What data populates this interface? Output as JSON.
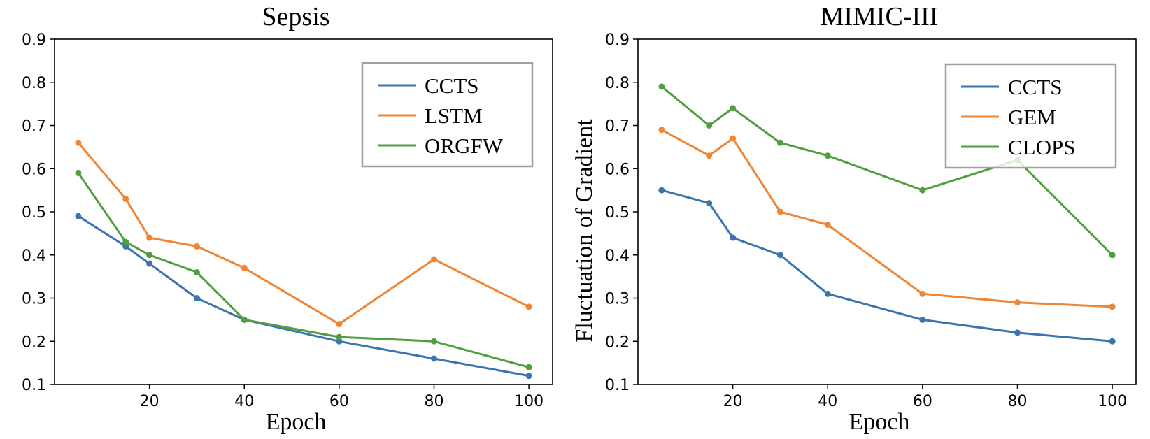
{
  "chart_data": [
    {
      "type": "line",
      "title": "Sepsis",
      "xlabel": "Epoch",
      "ylabel": "",
      "x": [
        5,
        15,
        20,
        30,
        40,
        60,
        80,
        100
      ],
      "xlim": [
        0,
        105
      ],
      "ylim": [
        0.1,
        0.9
      ],
      "xticks": [
        20,
        40,
        60,
        80,
        100
      ],
      "yticks": [
        0.1,
        0.2,
        0.3,
        0.4,
        0.5,
        0.6,
        0.7,
        0.8,
        0.9
      ],
      "grid": false,
      "legend_position": "top-right",
      "series": [
        {
          "name": "CCTS",
          "color": "#3a75ae",
          "values": [
            0.49,
            0.42,
            0.38,
            0.3,
            0.25,
            0.2,
            0.16,
            0.12
          ]
        },
        {
          "name": "LSTM",
          "color": "#ef8636",
          "values": [
            0.66,
            0.53,
            0.44,
            0.42,
            0.37,
            0.24,
            0.39,
            0.28
          ]
        },
        {
          "name": "ORGFW",
          "color": "#519e3e",
          "values": [
            0.59,
            0.43,
            0.4,
            0.36,
            0.25,
            0.21,
            0.2,
            0.14
          ]
        }
      ]
    },
    {
      "type": "line",
      "title": "MIMIC-III",
      "xlabel": "Epoch",
      "ylabel": "Fluctuation of Gradient",
      "x": [
        5,
        15,
        20,
        30,
        40,
        60,
        80,
        100
      ],
      "xlim": [
        0,
        105
      ],
      "ylim": [
        0.1,
        0.9
      ],
      "xticks": [
        20,
        40,
        60,
        80,
        100
      ],
      "yticks": [
        0.1,
        0.2,
        0.3,
        0.4,
        0.5,
        0.6,
        0.7,
        0.8,
        0.9
      ],
      "grid": false,
      "legend_position": "top-right",
      "series": [
        {
          "name": "CCTS",
          "color": "#3a75ae",
          "values": [
            0.55,
            0.52,
            0.44,
            0.4,
            0.31,
            0.25,
            0.22,
            0.2
          ]
        },
        {
          "name": "GEM",
          "color": "#ef8636",
          "values": [
            0.69,
            0.63,
            0.67,
            0.5,
            0.47,
            0.31,
            0.29,
            0.28
          ]
        },
        {
          "name": "CLOPS",
          "color": "#519e3e",
          "values": [
            0.79,
            0.7,
            0.74,
            0.66,
            0.63,
            0.55,
            0.62,
            0.4
          ]
        }
      ]
    }
  ]
}
